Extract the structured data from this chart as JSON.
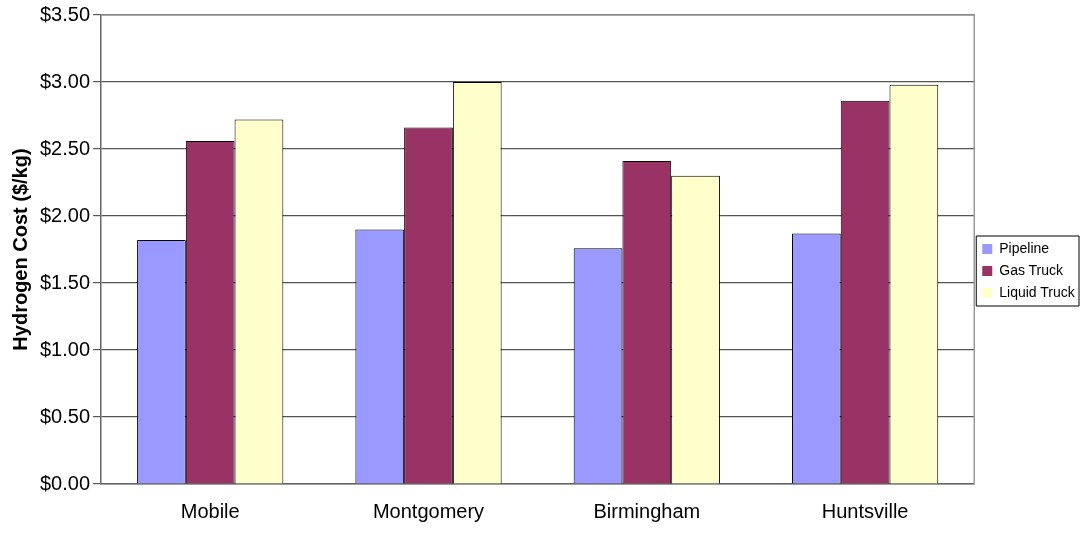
{
  "chart_data": {
    "type": "bar",
    "ylabel": "Hydrogen Cost ($/kg)",
    "categories": [
      "Mobile",
      "Montgomery",
      "Birmingham",
      "Huntsville"
    ],
    "series": [
      {
        "name": "Pipeline",
        "color": "#9999ff",
        "values": [
          1.82,
          1.9,
          1.76,
          1.87
        ]
      },
      {
        "name": "Gas Truck",
        "color": "#993366",
        "values": [
          2.56,
          2.66,
          2.41,
          2.86
        ]
      },
      {
        "name": "Liquid Truck",
        "color": "#ffffcc",
        "values": [
          2.72,
          3.0,
          2.3,
          2.98
        ]
      }
    ],
    "ylim": [
      0,
      3.5
    ],
    "yticks": [
      {
        "value": 0,
        "label": "$0.00"
      },
      {
        "value": 0.5,
        "label": "$0.50"
      },
      {
        "value": 1,
        "label": "$1.00"
      },
      {
        "value": 1.5,
        "label": "$1.50"
      },
      {
        "value": 2,
        "label": "$2.00"
      },
      {
        "value": 2.5,
        "label": "$2.50"
      },
      {
        "value": 3,
        "label": "$3.00"
      },
      {
        "value": 3.5,
        "label": "$3.50"
      }
    ],
    "grid": "y",
    "legend": "right"
  }
}
